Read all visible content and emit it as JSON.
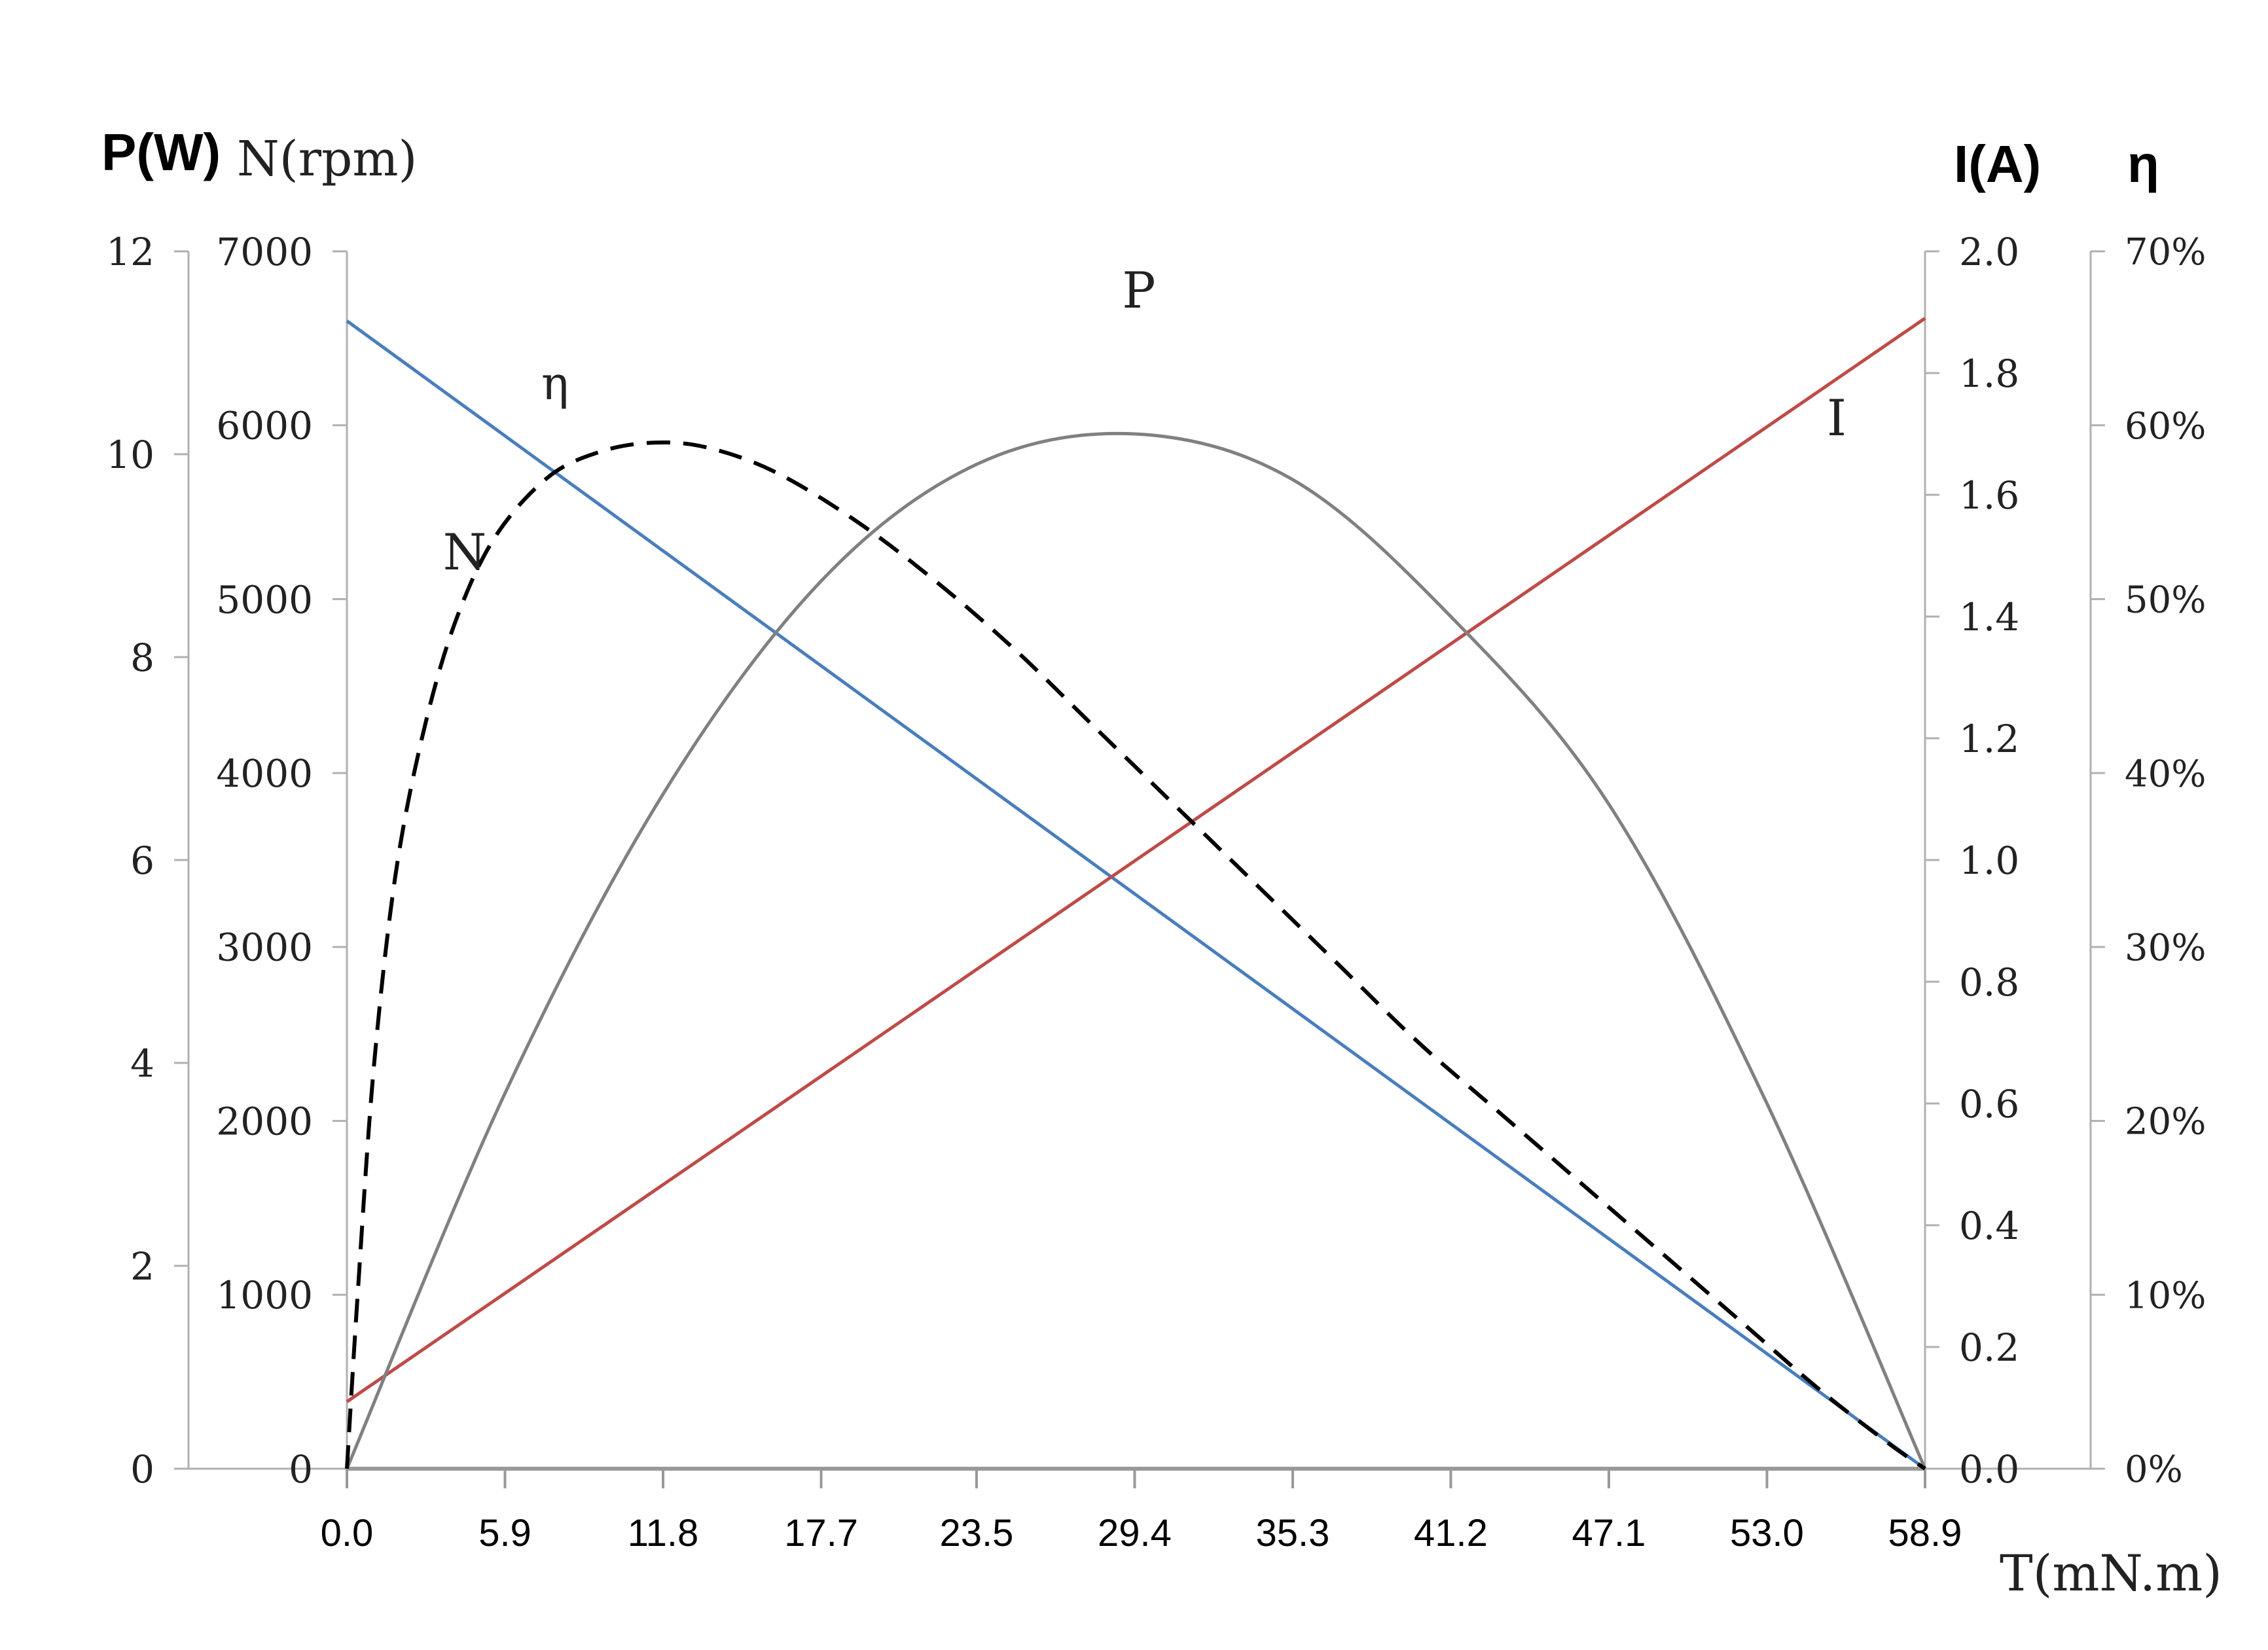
{
  "chart_data": {
    "type": "line",
    "x_label": "T(mN.m)",
    "x_ticks": [
      "0.0",
      "5.9",
      "11.8",
      "17.7",
      "23.5",
      "29.4",
      "35.3",
      "41.2",
      "47.1",
      "53.0",
      "58.9"
    ],
    "x_range": [
      0,
      58.9
    ],
    "axes": {
      "P": {
        "label": "P(W)",
        "ticks": [
          "0",
          "2",
          "4",
          "6",
          "8",
          "10",
          "12"
        ],
        "range": [
          0,
          12
        ]
      },
      "N": {
        "label": "N(rpm)",
        "ticks": [
          "0",
          "1000",
          "2000",
          "3000",
          "4000",
          "5000",
          "6000",
          "7000"
        ],
        "range": [
          0,
          7000
        ]
      },
      "I": {
        "label": "I(A)",
        "ticks": [
          "0.0",
          "0.2",
          "0.4",
          "0.6",
          "0.8",
          "1.0",
          "1.2",
          "1.4",
          "1.6",
          "1.8",
          "2.0"
        ],
        "range": [
          0,
          2.0
        ]
      },
      "eta": {
        "label": "η",
        "ticks": [
          "0%",
          "10%",
          "20%",
          "30%",
          "40%",
          "50%",
          "60%",
          "70%"
        ],
        "range": [
          0,
          70
        ]
      }
    },
    "series": [
      {
        "name": "N",
        "axis": "N",
        "color": "#4a7ebb",
        "dash": "solid",
        "x": [
          0,
          58.9
        ],
        "y": [
          6600,
          0
        ]
      },
      {
        "name": "I",
        "axis": "I",
        "color": "#be4b48",
        "dash": "solid",
        "x": [
          0,
          58.9
        ],
        "y": [
          0.11,
          1.89
        ]
      },
      {
        "name": "P",
        "axis": "P",
        "color": "#808080",
        "dash": "solid",
        "x": [
          0,
          5.9,
          11.8,
          17.7,
          23.5,
          29.4,
          35.3,
          41.2,
          47.1,
          53.0,
          58.9
        ],
        "y": [
          0,
          3.7,
          6.65,
          8.75,
          9.9,
          10.2,
          9.75,
          8.4,
          6.55,
          3.6,
          0
        ]
      },
      {
        "name": "η",
        "axis": "eta",
        "color": "#000000",
        "dash": "dashed",
        "x": [
          0,
          0.4,
          1.0,
          1.8,
          2.8,
          4.0,
          5.5,
          7.5,
          9.5,
          11.5,
          13.5,
          16.0,
          19.0,
          22.0,
          25.0,
          28.0,
          31.0,
          34.0,
          37.0,
          40.0,
          43.0,
          46.0,
          49.0,
          52.0,
          55.0,
          57.5,
          58.9
        ],
        "y": [
          0,
          10,
          23,
          34,
          42,
          48.5,
          53.5,
          57,
          58.5,
          59,
          58.7,
          57.3,
          54.5,
          51,
          47,
          42.5,
          38,
          33.5,
          29,
          24.5,
          20.5,
          16.5,
          12.5,
          8.5,
          4.5,
          1.5,
          0
        ]
      }
    ],
    "annotations": [
      {
        "text": "P",
        "series": "P"
      },
      {
        "text": "η",
        "series": "η"
      },
      {
        "text": "N",
        "series": "N"
      },
      {
        "text": "I",
        "series": "I"
      }
    ],
    "grid": false,
    "legend": "none"
  }
}
